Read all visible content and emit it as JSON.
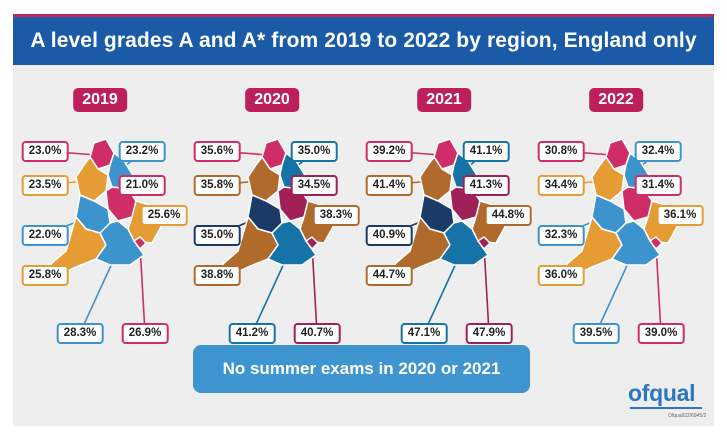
{
  "title": "A level grades A and A* from 2019 to 2022 by region, England only",
  "note": "No summer exams in 2020 or 2021",
  "logo": "ofqual",
  "reference": "Ofqual/22/6945/2",
  "colors": {
    "header": "#1b5aa7",
    "accent": "#bd1f5b",
    "note": "#3e95cf",
    "panel": "#eeeeee"
  },
  "chart_data": {
    "type": "choropleth",
    "title": "A level grades A and A* from 2019 to 2022 by region, England only",
    "unit": "%",
    "maps": [
      {
        "year": "2019",
        "values": [
          {
            "label": "23.0%",
            "value": 23.0,
            "color": "#cf2d67"
          },
          {
            "label": "23.2%",
            "value": 23.2,
            "color": "#3d94cc"
          },
          {
            "label": "23.5%",
            "value": 23.5,
            "color": "#e69c34"
          },
          {
            "label": "21.0%",
            "value": 21.0,
            "color": "#cf2d67"
          },
          {
            "label": "22.0%",
            "value": 22.0,
            "color": "#3d94cc"
          },
          {
            "label": "25.6%",
            "value": 25.6,
            "color": "#e69c34"
          },
          {
            "label": "25.8%",
            "value": 25.8,
            "color": "#e69c34"
          },
          {
            "label": "28.3%",
            "value": 28.3,
            "color": "#3d94cc"
          },
          {
            "label": "26.9%",
            "value": 26.9,
            "color": "#cf2d67"
          }
        ]
      },
      {
        "year": "2020",
        "values": [
          {
            "label": "35.6%",
            "value": 35.6,
            "color": "#cf2d67"
          },
          {
            "label": "35.0%",
            "value": 35.0,
            "color": "#1673a8"
          },
          {
            "label": "35.8%",
            "value": 35.8,
            "color": "#b06a2b"
          },
          {
            "label": "34.5%",
            "value": 34.5,
            "color": "#a02058"
          },
          {
            "label": "35.0%",
            "value": 35.0,
            "color": "#1b3a66"
          },
          {
            "label": "38.3%",
            "value": 38.3,
            "color": "#b06a2b"
          },
          {
            "label": "38.8%",
            "value": 38.8,
            "color": "#b06a2b"
          },
          {
            "label": "41.2%",
            "value": 41.2,
            "color": "#1673a8"
          },
          {
            "label": "40.7%",
            "value": 40.7,
            "color": "#a02058"
          }
        ]
      },
      {
        "year": "2021",
        "values": [
          {
            "label": "39.2%",
            "value": 39.2,
            "color": "#cf2d67"
          },
          {
            "label": "41.1%",
            "value": 41.1,
            "color": "#1673a8"
          },
          {
            "label": "41.4%",
            "value": 41.4,
            "color": "#b06a2b"
          },
          {
            "label": "41.3%",
            "value": 41.3,
            "color": "#a02058"
          },
          {
            "label": "40.9%",
            "value": 40.9,
            "color": "#1b3a66"
          },
          {
            "label": "44.8%",
            "value": 44.8,
            "color": "#b06a2b"
          },
          {
            "label": "44.7%",
            "value": 44.7,
            "color": "#b06a2b"
          },
          {
            "label": "47.1%",
            "value": 47.1,
            "color": "#1673a8"
          },
          {
            "label": "47.9%",
            "value": 47.9,
            "color": "#a02058"
          }
        ]
      },
      {
        "year": "2022",
        "values": [
          {
            "label": "30.8%",
            "value": 30.8,
            "color": "#cf2d67"
          },
          {
            "label": "32.4%",
            "value": 32.4,
            "color": "#3d94cc"
          },
          {
            "label": "34.4%",
            "value": 34.4,
            "color": "#e69c34"
          },
          {
            "label": "31.4%",
            "value": 31.4,
            "color": "#cf2d67"
          },
          {
            "label": "32.3%",
            "value": 32.3,
            "color": "#3d94cc"
          },
          {
            "label": "36.1%",
            "value": 36.1,
            "color": "#e69c34"
          },
          {
            "label": "36.0%",
            "value": 36.0,
            "color": "#e69c34"
          },
          {
            "label": "39.5%",
            "value": 39.5,
            "color": "#3d94cc"
          },
          {
            "label": "39.0%",
            "value": 39.0,
            "color": "#cf2d67"
          }
        ]
      }
    ]
  }
}
